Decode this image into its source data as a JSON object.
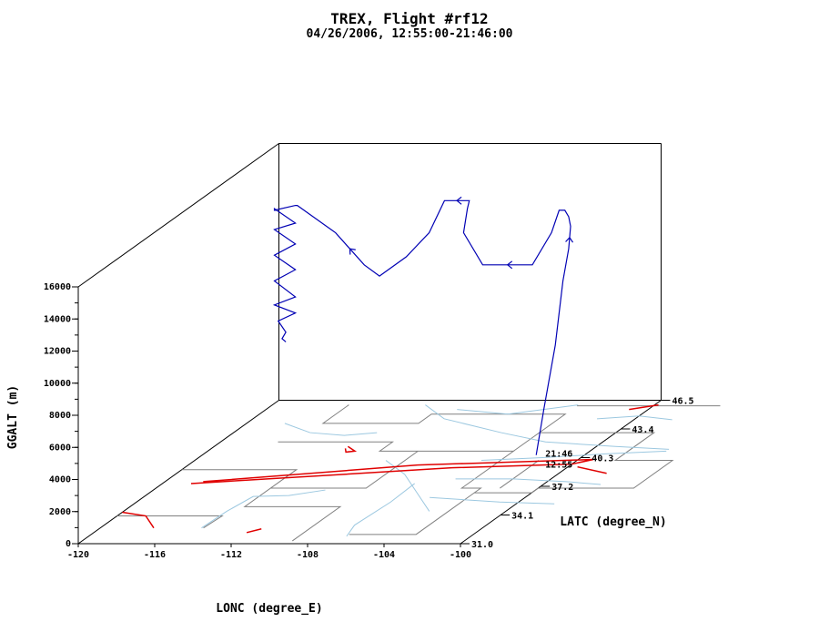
{
  "chart_data": {
    "type": "line",
    "title": "TREX, Flight #rf12",
    "subtitle": "04/26/2006, 12:55:00-21:46:00",
    "xlabel": "LONC (degree_E)",
    "ylabel": "GGALT (m)",
    "zlabel": "LATC (degree_N)",
    "xlim": [
      -120,
      -100
    ],
    "ylim": [
      0,
      16000
    ],
    "zlim": [
      31.0,
      46.5
    ],
    "x_ticks": [
      "-120",
      "-116",
      "-112",
      "-108",
      "-104",
      "-100"
    ],
    "y_ticks": [
      "0",
      "2000",
      "4000",
      "6000",
      "8000",
      "10000",
      "12000",
      "14000",
      "16000"
    ],
    "z_ticks": [
      "31.0",
      "34.1",
      "37.2",
      "40.3",
      "43.4",
      "46.5"
    ],
    "annotations": [
      {
        "text": "12:55",
        "lon": -100.0,
        "lat": 36.85,
        "alt": 2150
      },
      {
        "text": "21:46",
        "lon": -100.0,
        "lat": 36.85,
        "alt": 2150
      }
    ],
    "colors": {
      "track": "#0000b4",
      "coastline": "#e00000",
      "rivers": "#9cc8e0",
      "borders": "#808080"
    },
    "series": [
      {
        "lon": [
          -100.0,
          -99.6,
          -99.0,
          -98.6,
          -98.3,
          -98.2,
          -98.3,
          -98.5,
          -98.8,
          -99.2,
          -100.2,
          -102.8,
          -103.8,
          -103.6,
          -103.5,
          -104.8,
          -105.6,
          -106.8,
          -108.2,
          -109.0,
          -110.5,
          -112.5,
          -112.6,
          -113.7,
          -113.7,
          -112.6,
          -113.7,
          -112.6,
          -113.7,
          -112.6,
          -113.7,
          -112.6,
          -113.7,
          -112.6,
          -113.5,
          -113.1,
          -113.3,
          -113.1
        ],
        "lat": [
          36.85,
          36.85,
          36.85,
          36.85,
          36.85,
          36.85,
          36.85,
          36.85,
          36.85,
          36.85,
          36.85,
          36.85,
          36.85,
          36.85,
          36.85,
          36.85,
          36.85,
          36.85,
          36.85,
          36.85,
          36.85,
          36.85,
          36.85,
          36.85,
          36.85,
          36.85,
          36.85,
          36.85,
          36.85,
          36.85,
          36.85,
          36.85,
          36.85,
          36.85,
          36.85,
          36.85,
          36.85,
          36.85
        ],
        "alt": [
          2150,
          5000,
          9000,
          13000,
          15000,
          16400,
          17000,
          17400,
          17400,
          16000,
          14000,
          14000,
          16000,
          17500,
          18000,
          18000,
          16000,
          14500,
          13300,
          14000,
          16000,
          17700,
          17700,
          17400,
          17500,
          16600,
          16200,
          15300,
          14600,
          13700,
          13000,
          12000,
          11500,
          11000,
          10500,
          9800,
          9400,
          9200
        ]
      }
    ]
  }
}
